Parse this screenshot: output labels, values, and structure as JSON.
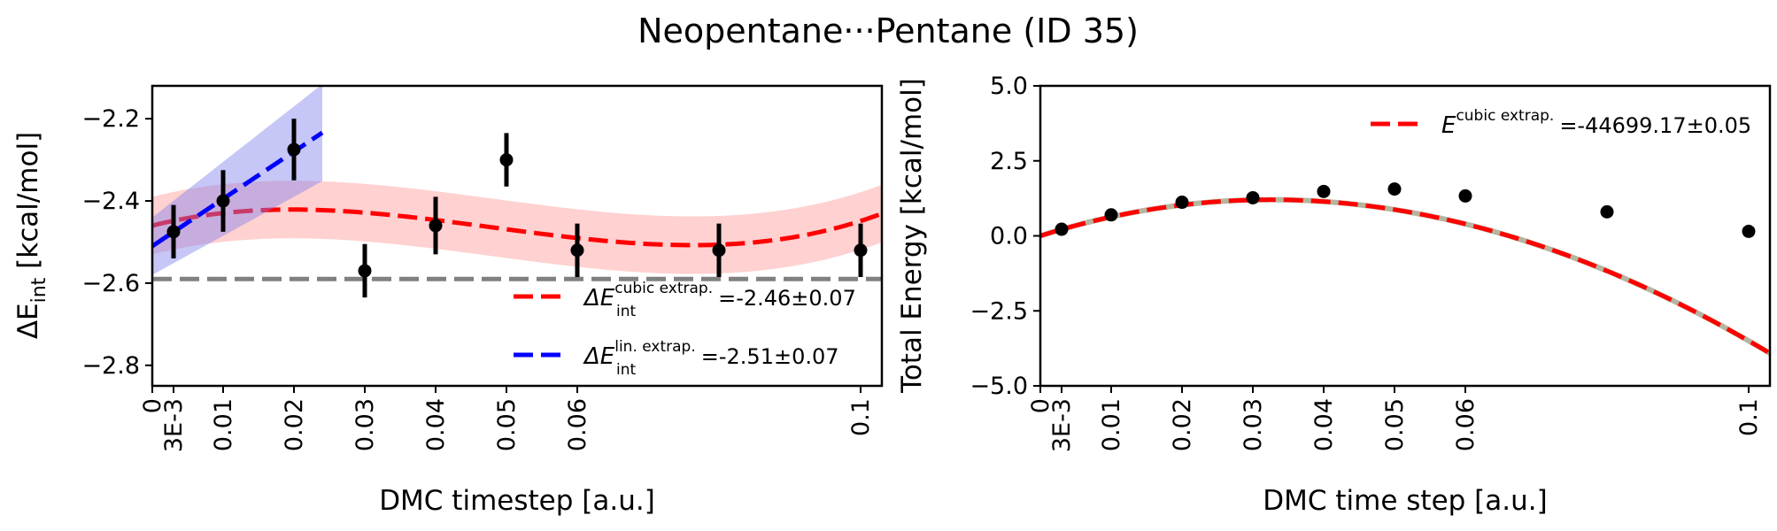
{
  "title": "Neopentane···Pentane (ID 35)",
  "chart_data": [
    {
      "type": "scatter",
      "panel": "left",
      "xlabel": "DMC timestep [a.u.]",
      "ylabel": {
        "main": "ΔE",
        "sub": "int",
        "unit": " [kcal/mol]"
      },
      "xlim": [
        0,
        0.103
      ],
      "ylim": [
        -2.85,
        -2.12
      ],
      "xticks": [
        {
          "value": 0,
          "label": "0"
        },
        {
          "value": 0.003,
          "label": "3E-3"
        },
        {
          "value": 0.01,
          "label": "0.01"
        },
        {
          "value": 0.02,
          "label": "0.02"
        },
        {
          "value": 0.03,
          "label": "0.03"
        },
        {
          "value": 0.04,
          "label": "0.04"
        },
        {
          "value": 0.05,
          "label": "0.05"
        },
        {
          "value": 0.06,
          "label": "0.06"
        },
        {
          "value": 0.1,
          "label": "0.1"
        }
      ],
      "yticks": [
        {
          "value": -2.2,
          "label": "−2.2"
        },
        {
          "value": -2.4,
          "label": "−2.4"
        },
        {
          "value": -2.6,
          "label": "−2.6"
        },
        {
          "value": -2.8,
          "label": "−2.8"
        }
      ],
      "points": [
        {
          "x": 0.003,
          "y": -2.475,
          "err": 0.065
        },
        {
          "x": 0.01,
          "y": -2.4,
          "err": 0.075
        },
        {
          "x": 0.02,
          "y": -2.275,
          "err": 0.075
        },
        {
          "x": 0.03,
          "y": -2.57,
          "err": 0.065
        },
        {
          "x": 0.04,
          "y": -2.46,
          "err": 0.07
        },
        {
          "x": 0.05,
          "y": -2.3,
          "err": 0.065
        },
        {
          "x": 0.06,
          "y": -2.52,
          "err": 0.065
        },
        {
          "x": 0.08,
          "y": -2.52,
          "err": 0.065
        },
        {
          "x": 0.1,
          "y": -2.52,
          "err": 0.065
        }
      ],
      "reference_line": {
        "y": -2.59,
        "color": "#808080"
      },
      "fits": [
        {
          "name": "cubic",
          "color": "#ff0000",
          "band_color": "#ff9999",
          "x_range": [
            0,
            0.103
          ],
          "coefficients": [
            -2.46,
            4.33,
            -138.2,
            960.2
          ],
          "uncertainty": 0.07
        },
        {
          "name": "linear",
          "color": "#0000ff",
          "band_color": "#8080ee",
          "x_range": [
            0,
            0.024
          ],
          "coefficients": [
            -2.51,
            11.5
          ],
          "uncertainty": 0.07,
          "uncertainty_slope": 2.0
        }
      ],
      "legend": {
        "position": "lower-right",
        "entries": [
          {
            "color": "#ff0000",
            "symbol": "ΔE",
            "sub": "int",
            "sup": "cubic extrap.",
            "value": "=-2.46±0.07"
          },
          {
            "color": "#0000ff",
            "symbol": "ΔE",
            "sub": "int",
            "sup": "lin. extrap.",
            "value": "=-2.51±0.07"
          }
        ]
      }
    },
    {
      "type": "line",
      "panel": "right",
      "xlabel": "DMC time step [a.u.]",
      "ylabel": "Total Energy [kcal/mol]",
      "xlim": [
        0,
        0.103
      ],
      "ylim": [
        -5.0,
        5.0
      ],
      "xticks": [
        {
          "value": 0,
          "label": "0"
        },
        {
          "value": 0.003,
          "label": "3E-3"
        },
        {
          "value": 0.01,
          "label": "0.01"
        },
        {
          "value": 0.02,
          "label": "0.02"
        },
        {
          "value": 0.03,
          "label": "0.03"
        },
        {
          "value": 0.04,
          "label": "0.04"
        },
        {
          "value": 0.05,
          "label": "0.05"
        },
        {
          "value": 0.06,
          "label": "0.06"
        },
        {
          "value": 0.1,
          "label": "0.1"
        }
      ],
      "yticks": [
        {
          "value": 5.0,
          "label": "5.0"
        },
        {
          "value": 2.5,
          "label": "2.5"
        },
        {
          "value": 0.0,
          "label": "0.0"
        },
        {
          "value": -2.5,
          "label": "−2.5"
        },
        {
          "value": -5.0,
          "label": "−5.0"
        }
      ],
      "points": [
        {
          "x": 0.003,
          "y": 0.22
        },
        {
          "x": 0.01,
          "y": 0.7
        },
        {
          "x": 0.02,
          "y": 1.12
        },
        {
          "x": 0.03,
          "y": 1.27
        },
        {
          "x": 0.04,
          "y": 1.48
        },
        {
          "x": 0.05,
          "y": 1.56
        },
        {
          "x": 0.06,
          "y": 1.33
        },
        {
          "x": 0.08,
          "y": 0.8
        },
        {
          "x": 0.1,
          "y": 0.15
        }
      ],
      "fits": [
        {
          "name": "cubic",
          "color": "#ff0000",
          "underlay_color": "#b5b5a0",
          "x_range": [
            0,
            0.103
          ],
          "coefficients": [
            0.0,
            75.0,
            -1200.0,
            1000.0
          ]
        }
      ],
      "legend": {
        "position": "top-right",
        "entries": [
          {
            "color": "#ff0000",
            "symbol": "E",
            "sup": "cubic extrap.",
            "value": "=-44699.17±0.05"
          }
        ]
      }
    }
  ]
}
